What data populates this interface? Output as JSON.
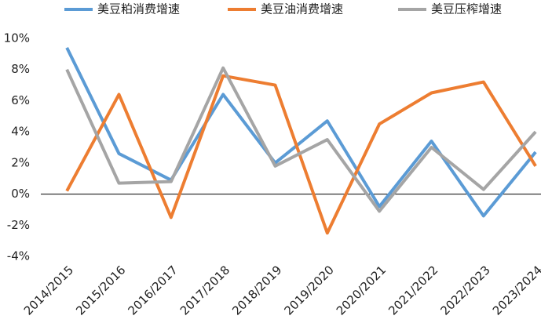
{
  "chart_data": {
    "type": "line",
    "categories": [
      "2014/2015",
      "2015/2016",
      "2016/2017",
      "2017/2018",
      "2018/2019",
      "2019/2020",
      "2020/2021",
      "2021/2022",
      "2022/2023",
      "2023/2024"
    ],
    "series": [
      {
        "name": "美豆粕消费增速",
        "color": "#5b9bd5",
        "values": [
          9.4,
          2.6,
          0.9,
          6.4,
          2.0,
          4.7,
          -0.8,
          3.4,
          -1.4,
          2.7
        ]
      },
      {
        "name": "美豆油消费增速",
        "color": "#ed7d31",
        "values": [
          0.2,
          6.4,
          -1.5,
          7.6,
          7.0,
          -2.5,
          4.5,
          6.5,
          7.2,
          1.8
        ]
      },
      {
        "name": "美豆压榨增速",
        "color": "#a5a5a5",
        "values": [
          8.0,
          0.7,
          0.8,
          8.1,
          1.8,
          3.5,
          -1.1,
          3.0,
          0.3,
          4.0
        ]
      }
    ],
    "ylim": [
      -4,
      10
    ],
    "yticks": [
      {
        "value": -4,
        "label": "-4%"
      },
      {
        "value": -2,
        "label": "-2%"
      },
      {
        "value": 0,
        "label": "0%"
      },
      {
        "value": 2,
        "label": "2%"
      },
      {
        "value": 4,
        "label": "4%"
      },
      {
        "value": 6,
        "label": "6%"
      },
      {
        "value": 8,
        "label": "8%"
      },
      {
        "value": 10,
        "label": "10%"
      }
    ],
    "legend": "top"
  }
}
